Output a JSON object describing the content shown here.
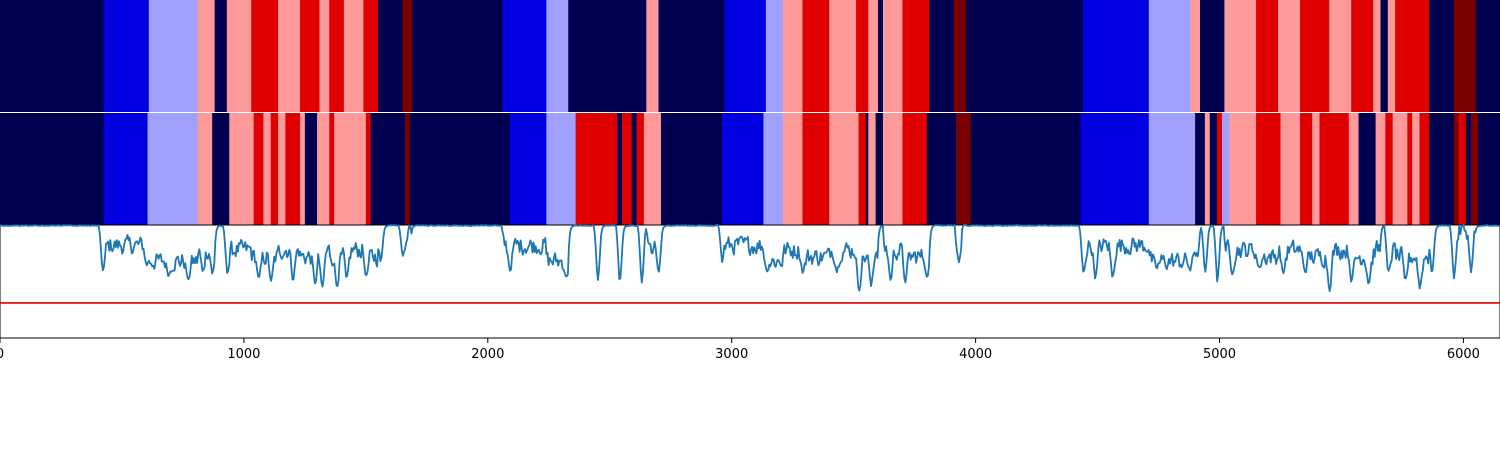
{
  "chart_data": {
    "type": "segmentation-with-line",
    "xlim": [
      0,
      6150
    ],
    "x_ticks": [
      0,
      1000,
      2000,
      3000,
      4000,
      5000,
      6000
    ],
    "x_tick_labels": [
      "0",
      "1000",
      "2000",
      "3000",
      "4000",
      "5000",
      "6000"
    ],
    "palette": {
      "0": "#000050",
      "1": "#0000e0",
      "2": "#a0a0ff",
      "3": "#ff9a9a",
      "4": "#e00000",
      "5": "#7a0000"
    },
    "tracks": [
      {
        "segments": [
          [
            0,
            425,
            0
          ],
          [
            425,
            610,
            1
          ],
          [
            610,
            810,
            2
          ],
          [
            810,
            880,
            3
          ],
          [
            880,
            930,
            0
          ],
          [
            930,
            1030,
            3
          ],
          [
            1030,
            1140,
            4
          ],
          [
            1140,
            1230,
            3
          ],
          [
            1230,
            1310,
            4
          ],
          [
            1310,
            1350,
            3
          ],
          [
            1350,
            1410,
            4
          ],
          [
            1410,
            1490,
            3
          ],
          [
            1490,
            1550,
            4
          ],
          [
            1550,
            1650,
            0
          ],
          [
            1650,
            1690,
            5
          ],
          [
            1690,
            2060,
            0
          ],
          [
            2060,
            2240,
            1
          ],
          [
            2240,
            2330,
            2
          ],
          [
            2330,
            2650,
            0
          ],
          [
            2650,
            2700,
            3
          ],
          [
            2700,
            2970,
            0
          ],
          [
            2970,
            3140,
            1
          ],
          [
            3140,
            3210,
            2
          ],
          [
            3210,
            3290,
            3
          ],
          [
            3290,
            3400,
            4
          ],
          [
            3400,
            3510,
            3
          ],
          [
            3510,
            3560,
            4
          ],
          [
            3560,
            3600,
            3
          ],
          [
            3600,
            3620,
            0
          ],
          [
            3620,
            3700,
            3
          ],
          [
            3700,
            3810,
            4
          ],
          [
            3810,
            3910,
            0
          ],
          [
            3910,
            3960,
            5
          ],
          [
            3960,
            4440,
            0
          ],
          [
            4440,
            4710,
            1
          ],
          [
            4710,
            4880,
            2
          ],
          [
            4880,
            4920,
            3
          ],
          [
            4920,
            5020,
            0
          ],
          [
            5020,
            5150,
            3
          ],
          [
            5150,
            5240,
            4
          ],
          [
            5240,
            5330,
            3
          ],
          [
            5330,
            5450,
            4
          ],
          [
            5450,
            5540,
            3
          ],
          [
            5540,
            5630,
            4
          ],
          [
            5630,
            5660,
            3
          ],
          [
            5660,
            5690,
            0
          ],
          [
            5690,
            5720,
            3
          ],
          [
            5720,
            5860,
            4
          ],
          [
            5860,
            5960,
            0
          ],
          [
            5960,
            6050,
            5
          ],
          [
            6050,
            6150,
            0
          ]
        ]
      },
      {
        "segments": [
          [
            0,
            425,
            0
          ],
          [
            425,
            605,
            1
          ],
          [
            605,
            810,
            2
          ],
          [
            810,
            870,
            3
          ],
          [
            870,
            940,
            0
          ],
          [
            940,
            1040,
            3
          ],
          [
            1040,
            1080,
            4
          ],
          [
            1080,
            1110,
            3
          ],
          [
            1110,
            1140,
            4
          ],
          [
            1140,
            1170,
            3
          ],
          [
            1170,
            1230,
            4
          ],
          [
            1230,
            1250,
            3
          ],
          [
            1250,
            1300,
            0
          ],
          [
            1300,
            1350,
            3
          ],
          [
            1350,
            1370,
            4
          ],
          [
            1370,
            1500,
            3
          ],
          [
            1500,
            1520,
            4
          ],
          [
            1520,
            1660,
            0
          ],
          [
            1660,
            1680,
            5
          ],
          [
            1680,
            2090,
            0
          ],
          [
            2090,
            2240,
            1
          ],
          [
            2240,
            2360,
            2
          ],
          [
            2360,
            2530,
            4
          ],
          [
            2530,
            2550,
            0
          ],
          [
            2550,
            2590,
            4
          ],
          [
            2590,
            2610,
            0
          ],
          [
            2610,
            2640,
            4
          ],
          [
            2640,
            2710,
            3
          ],
          [
            2710,
            2960,
            0
          ],
          [
            2960,
            3130,
            1
          ],
          [
            3130,
            3210,
            2
          ],
          [
            3210,
            3290,
            3
          ],
          [
            3290,
            3400,
            4
          ],
          [
            3400,
            3520,
            3
          ],
          [
            3520,
            3550,
            4
          ],
          [
            3550,
            3560,
            0
          ],
          [
            3560,
            3590,
            3
          ],
          [
            3590,
            3620,
            0
          ],
          [
            3620,
            3700,
            3
          ],
          [
            3700,
            3800,
            4
          ],
          [
            3800,
            3920,
            0
          ],
          [
            3920,
            3980,
            5
          ],
          [
            3980,
            4430,
            0
          ],
          [
            4430,
            4470,
            1
          ],
          [
            4470,
            4710,
            1
          ],
          [
            4710,
            4900,
            2
          ],
          [
            4900,
            4940,
            0
          ],
          [
            4940,
            4960,
            3
          ],
          [
            4960,
            4990,
            0
          ],
          [
            4990,
            5010,
            4
          ],
          [
            5010,
            5040,
            2
          ],
          [
            5040,
            5150,
            3
          ],
          [
            5150,
            5250,
            4
          ],
          [
            5250,
            5330,
            3
          ],
          [
            5330,
            5380,
            4
          ],
          [
            5380,
            5410,
            3
          ],
          [
            5410,
            5530,
            4
          ],
          [
            5530,
            5570,
            3
          ],
          [
            5570,
            5640,
            0
          ],
          [
            5640,
            5680,
            3
          ],
          [
            5680,
            5710,
            4
          ],
          [
            5710,
            5770,
            3
          ],
          [
            5770,
            5790,
            4
          ],
          [
            5790,
            5820,
            3
          ],
          [
            5820,
            5860,
            4
          ],
          [
            5860,
            5960,
            0
          ],
          [
            5960,
            5980,
            5
          ],
          [
            5980,
            6010,
            4
          ],
          [
            6010,
            6030,
            0
          ],
          [
            6030,
            6060,
            5
          ],
          [
            6060,
            6150,
            0
          ]
        ]
      }
    ],
    "line_panel": {
      "ylim": [
        0,
        1
      ],
      "threshold": 0.31,
      "threshold_color": "#e00000",
      "line_color": "#1f77b4",
      "segment_defaults": {
        "0": 1.0,
        "1": 0.82,
        "2": 0.68,
        "3": 0.78,
        "4": 0.72,
        "5": 0.95
      },
      "dips": [
        [
          420,
          0.5
        ],
        [
          600,
          0.6
        ],
        [
          690,
          0.52
        ],
        [
          770,
          0.48
        ],
        [
          830,
          0.55
        ],
        [
          870,
          0.53
        ],
        [
          930,
          0.5
        ],
        [
          1060,
          0.48
        ],
        [
          1110,
          0.45
        ],
        [
          1200,
          0.45
        ],
        [
          1290,
          0.42
        ],
        [
          1320,
          0.36
        ],
        [
          1380,
          0.4
        ],
        [
          1420,
          0.45
        ],
        [
          1500,
          0.5
        ],
        [
          1560,
          0.62
        ],
        [
          1650,
          0.66
        ],
        [
          2090,
          0.55
        ],
        [
          2320,
          0.52
        ],
        [
          2450,
          0.4
        ],
        [
          2540,
          0.38
        ],
        [
          2630,
          0.37
        ],
        [
          2700,
          0.52
        ],
        [
          2960,
          0.6
        ],
        [
          3140,
          0.58
        ],
        [
          3290,
          0.54
        ],
        [
          3430,
          0.55
        ],
        [
          3520,
          0.34
        ],
        [
          3570,
          0.38
        ],
        [
          3650,
          0.46
        ],
        [
          3710,
          0.44
        ],
        [
          3800,
          0.52
        ],
        [
          3930,
          0.6
        ],
        [
          4440,
          0.5
        ],
        [
          4490,
          0.46
        ],
        [
          4560,
          0.48
        ],
        [
          4740,
          0.6
        ],
        [
          4880,
          0.58
        ],
        [
          4940,
          0.48
        ],
        [
          4990,
          0.4
        ],
        [
          5050,
          0.52
        ],
        [
          5160,
          0.6
        ],
        [
          5260,
          0.52
        ],
        [
          5350,
          0.56
        ],
        [
          5450,
          0.35
        ],
        [
          5540,
          0.44
        ],
        [
          5610,
          0.44
        ],
        [
          5690,
          0.5
        ],
        [
          5760,
          0.45
        ],
        [
          5820,
          0.38
        ],
        [
          5870,
          0.48
        ],
        [
          5960,
          0.42
        ],
        [
          6030,
          0.5
        ]
      ]
    }
  }
}
